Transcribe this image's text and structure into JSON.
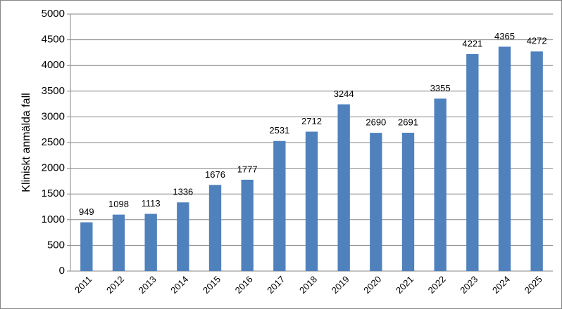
{
  "chart_data": {
    "type": "bar",
    "y_label": "Kliniskt anmälda fall",
    "categories": [
      "2011",
      "2012",
      "2013",
      "2014",
      "2015",
      "2016",
      "2017",
      "2018",
      "2019",
      "2020",
      "2021",
      "2022",
      "2023",
      "2024",
      "2025"
    ],
    "values": [
      949,
      1098,
      1113,
      1336,
      1676,
      1777,
      2531,
      2712,
      3244,
      2690,
      2691,
      3355,
      4221,
      4365,
      4272
    ],
    "color": "#4f81bd",
    "ylim": [
      0,
      5000
    ],
    "yticks": [
      0,
      500,
      1000,
      1500,
      2000,
      2500,
      3000,
      3500,
      4000,
      4500,
      5000
    ],
    "grid": true,
    "data_labels": true
  }
}
